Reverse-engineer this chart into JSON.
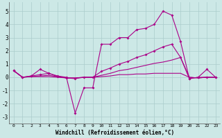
{
  "xlabel": "Windchill (Refroidissement éolien,°C)",
  "xlim": [
    -0.5,
    23.5
  ],
  "ylim": [
    -3.5,
    5.7
  ],
  "yticks": [
    -3,
    -2,
    -1,
    0,
    1,
    2,
    3,
    4,
    5
  ],
  "xticks": [
    0,
    1,
    2,
    3,
    4,
    5,
    6,
    7,
    8,
    9,
    10,
    11,
    12,
    13,
    14,
    15,
    16,
    17,
    18,
    19,
    20,
    21,
    22,
    23
  ],
  "background_color": "#cce8e6",
  "grid_color": "#aacccc",
  "line_color": "#aa0088",
  "line1": [
    0.5,
    0.0,
    0.1,
    0.6,
    0.3,
    0.1,
    0.0,
    -2.7,
    -0.8,
    -0.8,
    2.5,
    2.5,
    3.0,
    3.0,
    3.6,
    3.7,
    4.0,
    5.0,
    4.7,
    2.7,
    -0.1,
    0.0,
    0.6,
    0.0
  ],
  "line2": [
    0.5,
    0.0,
    0.1,
    0.2,
    0.3,
    0.05,
    -0.05,
    -0.1,
    0.0,
    0.0,
    0.45,
    0.7,
    1.0,
    1.2,
    1.5,
    1.7,
    2.0,
    2.3,
    2.5,
    1.5,
    -0.1,
    0.0,
    0.0,
    0.0
  ],
  "line3": [
    0.5,
    0.0,
    0.05,
    0.1,
    0.15,
    0.05,
    -0.05,
    -0.05,
    0.0,
    0.0,
    0.15,
    0.3,
    0.5,
    0.6,
    0.75,
    0.9,
    1.05,
    1.15,
    1.3,
    1.5,
    0.0,
    -0.05,
    0.0,
    0.0
  ],
  "line4": [
    0.5,
    0.0,
    0.05,
    0.05,
    0.05,
    0.0,
    -0.05,
    -0.05,
    0.0,
    0.0,
    0.05,
    0.1,
    0.2,
    0.2,
    0.25,
    0.25,
    0.3,
    0.3,
    0.3,
    0.3,
    0.0,
    -0.05,
    0.0,
    0.0
  ]
}
